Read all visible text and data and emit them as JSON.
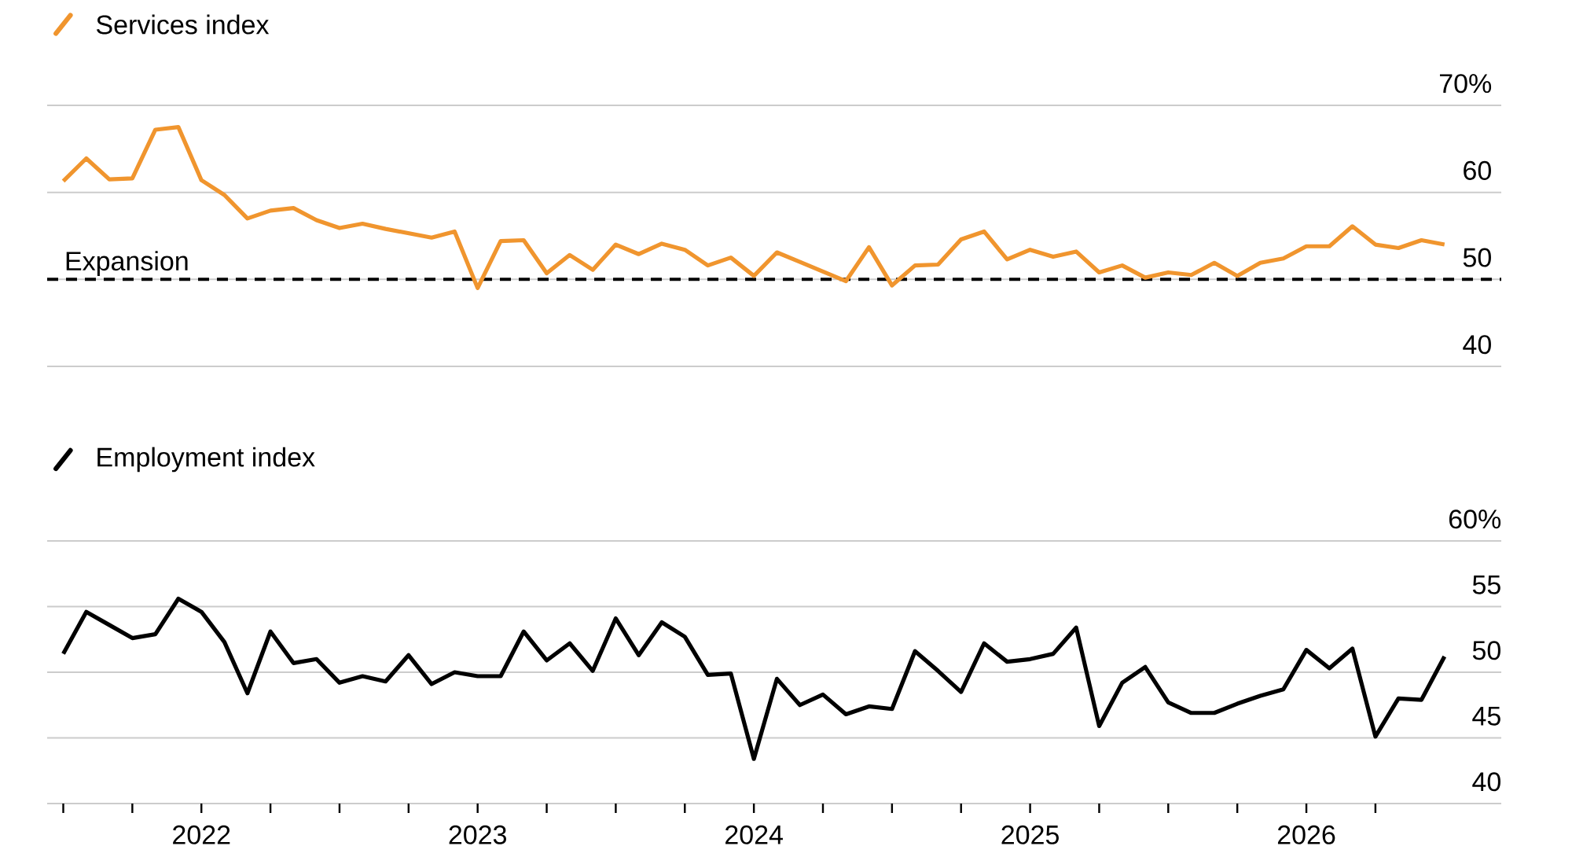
{
  "chart_data": [
    {
      "type": "line",
      "x": [
        "2021-07",
        "2021-08",
        "2021-09",
        "2021-10",
        "2021-11",
        "2021-12",
        "2022-01",
        "2022-02",
        "2022-03",
        "2022-04",
        "2022-05",
        "2022-06",
        "2022-07",
        "2022-08",
        "2022-09",
        "2022-10",
        "2022-11",
        "2022-12",
        "2023-01",
        "2023-02",
        "2023-03",
        "2023-04",
        "2023-05",
        "2023-06",
        "2023-07",
        "2023-08",
        "2023-09",
        "2023-10",
        "2023-11",
        "2023-12",
        "2024-01",
        "2024-02",
        "2024-03",
        "2024-04",
        "2024-05",
        "2024-06",
        "2024-07",
        "2024-08",
        "2024-09",
        "2024-10",
        "2024-11",
        "2024-12",
        "2025-01",
        "2025-02",
        "2025-03",
        "2025-04",
        "2025-05",
        "2025-06",
        "2025-07",
        "2025-08",
        "2025-09",
        "2025-10",
        "2025-11",
        "2025-12",
        "2026-01",
        "2026-02",
        "2026-03",
        "2026-04",
        "2026-05",
        "2026-06",
        "2026-07"
      ],
      "series": [
        {
          "name": "Services index",
          "color": "#f0952e",
          "values": [
            61.3,
            63.9,
            61.5,
            61.6,
            67.2,
            67.5,
            61.4,
            59.7,
            57.0,
            57.9,
            58.2,
            56.8,
            55.9,
            56.4,
            55.8,
            55.3,
            54.8,
            55.5,
            49.0,
            54.4,
            54.5,
            50.7,
            52.8,
            51.1,
            54.0,
            52.9,
            54.1,
            53.4,
            51.6,
            52.5,
            50.4,
            53.1,
            52.0,
            50.9,
            49.8,
            53.7,
            49.3,
            51.6,
            51.7,
            54.6,
            55.5,
            52.3,
            53.4,
            52.6,
            53.2,
            50.8,
            51.6,
            50.2,
            50.8,
            50.5,
            51.9,
            50.4,
            51.9,
            52.4,
            53.8,
            53.8,
            56.1,
            54.0,
            53.6,
            54.5,
            54.0
          ]
        }
      ],
      "xlim": [
        "2021-06-10",
        "2026-09-15"
      ],
      "ylim": [
        40,
        70
      ],
      "yticks": [
        40,
        50,
        60,
        {
          "value": 70,
          "label": "70%"
        }
      ],
      "grid": "y",
      "legend": "top left",
      "tick_labels": "y",
      "ref_lines": [
        {
          "axis": "y",
          "value": 50,
          "label": "Expansion",
          "color": "#000000",
          "line_style": "dashed"
        }
      ]
    },
    {
      "type": "line",
      "x": [
        "2021-07",
        "2021-08",
        "2021-09",
        "2021-10",
        "2021-11",
        "2021-12",
        "2022-01",
        "2022-02",
        "2022-03",
        "2022-04",
        "2022-05",
        "2022-06",
        "2022-07",
        "2022-08",
        "2022-09",
        "2022-10",
        "2022-11",
        "2022-12",
        "2023-01",
        "2023-02",
        "2023-03",
        "2023-04",
        "2023-05",
        "2023-06",
        "2023-07",
        "2023-08",
        "2023-09",
        "2023-10",
        "2023-11",
        "2023-12",
        "2024-01",
        "2024-02",
        "2024-03",
        "2024-04",
        "2024-05",
        "2024-06",
        "2024-07",
        "2024-08",
        "2024-09",
        "2024-10",
        "2024-11",
        "2024-12",
        "2025-01",
        "2025-02",
        "2025-03",
        "2025-04",
        "2025-05",
        "2025-06",
        "2025-07",
        "2025-08",
        "2025-09",
        "2025-10",
        "2025-11",
        "2025-12",
        "2026-01",
        "2026-02",
        "2026-03",
        "2026-04",
        "2026-05",
        "2026-06",
        "2026-07"
      ],
      "series": [
        {
          "name": "Employment index",
          "color": "#000000",
          "values": [
            51.4,
            54.6,
            53.6,
            52.6,
            52.9,
            55.6,
            54.6,
            52.3,
            48.4,
            53.1,
            50.7,
            51.0,
            49.2,
            49.7,
            49.3,
            51.3,
            49.1,
            50.0,
            49.7,
            49.7,
            53.1,
            50.9,
            52.2,
            50.1,
            54.1,
            51.3,
            53.8,
            52.7,
            49.8,
            49.9,
            43.4,
            49.5,
            47.5,
            48.3,
            46.8,
            47.4,
            47.2,
            51.6,
            50.1,
            48.5,
            52.2,
            50.8,
            51.0,
            51.4,
            53.4,
            45.9,
            49.2,
            50.4,
            47.7,
            46.9,
            46.9,
            47.6,
            48.2,
            48.7,
            51.7,
            50.3,
            51.8,
            45.1,
            48.0,
            47.9,
            51.2
          ]
        }
      ],
      "xlim": [
        "2021-06-10",
        "2026-09-15"
      ],
      "xticks": [
        {
          "value": "2021-07",
          "label": null
        },
        {
          "value": "2021-10",
          "label": null
        },
        {
          "value": "2022-01",
          "label": "2022"
        },
        {
          "value": "2022-04",
          "label": null
        },
        {
          "value": "2022-07",
          "label": null
        },
        {
          "value": "2022-10",
          "label": null
        },
        {
          "value": "2023-01",
          "label": "2023"
        },
        {
          "value": "2023-04",
          "label": null
        },
        {
          "value": "2023-07",
          "label": null
        },
        {
          "value": "2023-10",
          "label": null
        },
        {
          "value": "2024-01",
          "label": "2024"
        },
        {
          "value": "2024-04",
          "label": null
        },
        {
          "value": "2024-07",
          "label": null
        },
        {
          "value": "2024-10",
          "label": null
        },
        {
          "value": "2025-01",
          "label": "2025"
        },
        {
          "value": "2025-04",
          "label": null
        },
        {
          "value": "2025-07",
          "label": null
        },
        {
          "value": "2025-10",
          "label": null
        },
        {
          "value": "2026-01",
          "label": "2026"
        },
        {
          "value": "2026-04",
          "label": null
        }
      ],
      "ylim": [
        40,
        60
      ],
      "yticks": [
        40,
        45,
        50,
        55,
        {
          "value": 60,
          "label": "60%"
        }
      ],
      "grid": "y",
      "legend": "top left"
    }
  ]
}
